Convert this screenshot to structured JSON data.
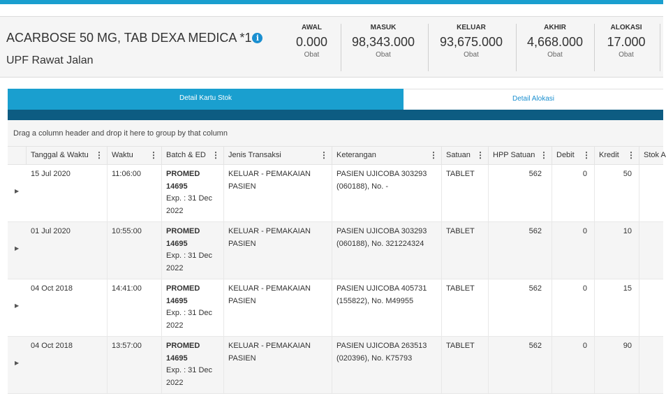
{
  "header": {
    "item_title": "ACARBOSE 50 MG, TAB DEXA MEDICA *1",
    "unit": "UPF Rawat Jalan",
    "stats": [
      {
        "label": "AWAL",
        "value": "0.000",
        "sub": "Obat"
      },
      {
        "label": "MASUK",
        "value": "98,343.000",
        "sub": "Obat"
      },
      {
        "label": "KELUAR",
        "value": "93,675.000",
        "sub": "Obat"
      },
      {
        "label": "AKHIR",
        "value": "4,668.000",
        "sub": "Obat"
      },
      {
        "label": "ALOKASI",
        "value": "17.000",
        "sub": "Obat"
      }
    ]
  },
  "tabs": [
    {
      "label": "Detail Kartu Stok",
      "active": true
    },
    {
      "label": "Detail Alokasi",
      "active": false
    }
  ],
  "group_panel": "Drag a column header and drop it here to group by that column",
  "columns": [
    "Tanggal & Waktu",
    "Waktu",
    "Batch & ED",
    "Jenis Transaksi",
    "Keterangan",
    "Satuan",
    "HPP Satuan",
    "Debit",
    "Kredit",
    "Stok A"
  ],
  "icons": {
    "expander": "caret-right-icon",
    "column_menu": "vertical-ellipsis-icon",
    "info": "info-circle-icon"
  },
  "colors": {
    "accent": "#1a9fcf",
    "tab_band": "#0d5c82"
  },
  "rows": [
    {
      "date": "15 Jul 2020",
      "time": "11:06:00",
      "batch": "PROMED 14695",
      "exp": "Exp. : 31 Dec 2022",
      "jenis": "KELUAR - PEMAKAIAN PASIEN",
      "keterangan": "PASIEN UJICOBA 303293 (060188), No. -",
      "satuan": "TABLET",
      "hpp": "562",
      "debit": "0",
      "kredit": "50"
    },
    {
      "date": "01 Jul 2020",
      "time": "10:55:00",
      "batch": "PROMED 14695",
      "exp": "Exp. : 31 Dec 2022",
      "jenis": "KELUAR - PEMAKAIAN PASIEN",
      "keterangan": "PASIEN UJICOBA 303293 (060188), No. 321224324",
      "satuan": "TABLET",
      "hpp": "562",
      "debit": "0",
      "kredit": "10"
    },
    {
      "date": "04 Oct 2018",
      "time": "14:41:00",
      "batch": "PROMED 14695",
      "exp": "Exp. : 31 Dec 2022",
      "jenis": "KELUAR - PEMAKAIAN PASIEN",
      "keterangan": "PASIEN UJICOBA 405731 (155822), No. M49955",
      "satuan": "TABLET",
      "hpp": "562",
      "debit": "0",
      "kredit": "15"
    },
    {
      "date": "04 Oct 2018",
      "time": "13:57:00",
      "batch": "PROMED 14695",
      "exp": "Exp. : 31 Dec 2022",
      "jenis": "KELUAR - PEMAKAIAN PASIEN",
      "keterangan": "PASIEN UJICOBA 263513 (020396), No. K75793",
      "satuan": "TABLET",
      "hpp": "562",
      "debit": "0",
      "kredit": "90"
    }
  ]
}
